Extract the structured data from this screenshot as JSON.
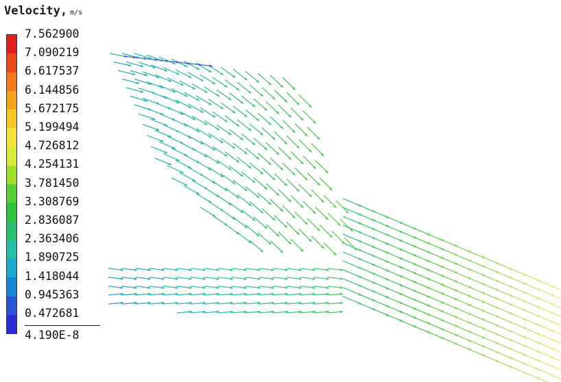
{
  "legend": {
    "title": "Velocity,",
    "unit": "m/s",
    "labels": [
      "7.562900",
      "7.090219",
      "6.617537",
      "6.144856",
      "5.672175",
      "5.199494",
      "4.726812",
      "4.254131",
      "3.781450",
      "3.308769",
      "2.836087",
      "2.363406",
      "1.890725",
      "1.418044",
      "0.945363",
      "0.472681",
      "4.190E-8"
    ],
    "segment_colors": [
      "#e0201e",
      "#ea4a1c",
      "#f07a1c",
      "#f4a31e",
      "#f6c623",
      "#f2e43a",
      "#d6ec3a",
      "#9fdc2c",
      "#5cce36",
      "#33c23d",
      "#2cbd6e",
      "#24bfa6",
      "#1aa9cf",
      "#1a86d6",
      "#2a55d6",
      "#2a2bd2"
    ]
  },
  "colors": {
    "legend_text": "#111111",
    "arrow_low": "#3c3cc8",
    "arrow_mid": "#38b8b0",
    "arrow_high": "#f2e680"
  }
}
